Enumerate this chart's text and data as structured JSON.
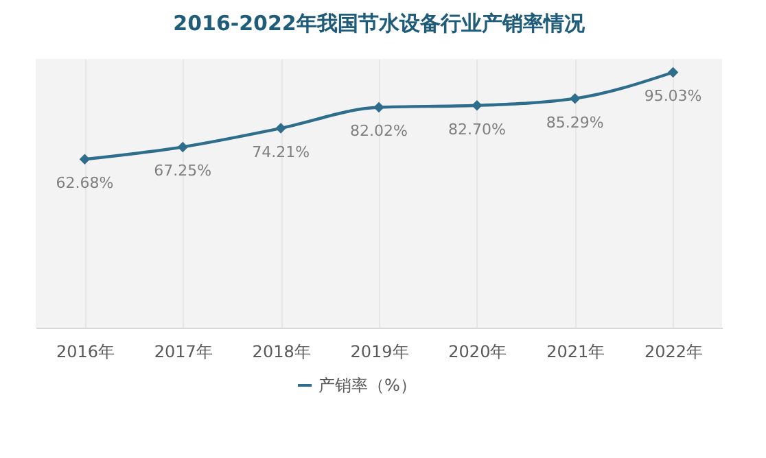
{
  "chart_data": {
    "type": "line",
    "title": "2016-2022年我国节水设备行业产销率情况",
    "categories": [
      "2016年",
      "2017年",
      "2018年",
      "2019年",
      "2020年",
      "2021年",
      "2022年"
    ],
    "series": [
      {
        "name": "产销率（%）",
        "color": "#2e6d8c",
        "values": [
          62.68,
          67.25,
          74.21,
          82.02,
          82.7,
          85.29,
          95.03
        ],
        "value_labels": [
          "62.68%",
          "67.25%",
          "74.21%",
          "82.02%",
          "82.70%",
          "85.29%",
          "95.03%"
        ]
      }
    ],
    "tick_labels": "x",
    "grid": "x",
    "legend": "bottom",
    "marker": "diamond",
    "line_style": "solid"
  }
}
